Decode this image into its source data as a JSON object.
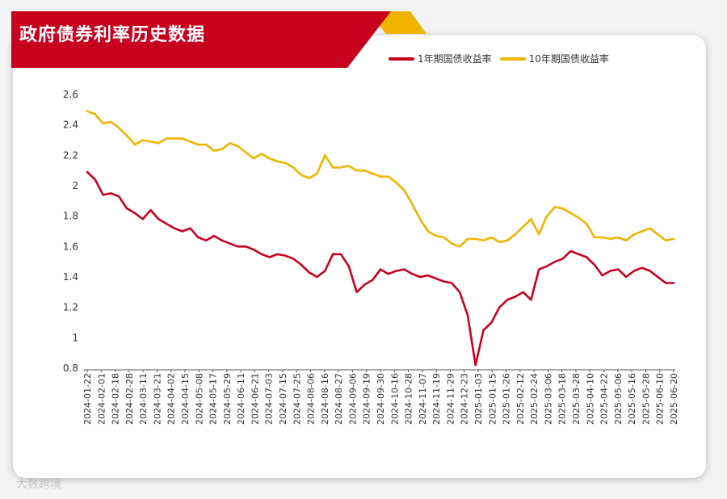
{
  "header": {
    "title": "政府债券利率历史数据"
  },
  "watermark": "大数跨境",
  "colors": {
    "one_year": "#c8001e",
    "ten_year": "#f0b400",
    "banner": "#c8001e",
    "banner_accent": "#f0b400"
  },
  "chart_data": {
    "type": "line",
    "title": "政府债券利率历史数据",
    "xlabel": "",
    "ylabel": "",
    "ylim": [
      0.8,
      2.6
    ],
    "y_ticks": [
      2.6,
      2.4,
      2.2,
      2,
      1.8,
      1.6,
      1.4,
      1.2,
      1,
      0.8
    ],
    "grid": false,
    "legend_position": "top-right",
    "x_tick_labels": [
      "2024-01-22",
      "2024-02-01",
      "2024-02-18",
      "2024-02-28",
      "2024-03-11",
      "2024-03-21",
      "2024-04-02",
      "2024-04-15",
      "2024-05-08",
      "2024-05-17",
      "2024-05-29",
      "2024-06-11",
      "2024-06-21",
      "2024-07-03",
      "2024-07-15",
      "2024-07-25",
      "2024-08-06",
      "2024-08-16",
      "2024-08-27",
      "2024-09-06",
      "2024-09-19",
      "2024-09-30",
      "2024-10-16",
      "2024-10-28",
      "2024-11-07",
      "2024-11-19",
      "2024-11-29",
      "2024-12-23",
      "2025-01-03",
      "2025-01-15",
      "2025-01-26",
      "2025-02-12",
      "2025-02-24",
      "2025-03-06",
      "2025-03-18",
      "2025-03-28",
      "2025-04-10",
      "2025-04-22",
      "2025-05-06",
      "2025-05-16",
      "2025-05-28",
      "2025-06-10",
      "2025-06-20"
    ],
    "series": [
      {
        "name": "1年期国债收益率",
        "color": "#c8001e",
        "values": [
          2.09,
          2.04,
          1.94,
          1.95,
          1.93,
          1.85,
          1.82,
          1.78,
          1.84,
          1.78,
          1.75,
          1.72,
          1.7,
          1.72,
          1.66,
          1.64,
          1.67,
          1.64,
          1.62,
          1.6,
          1.6,
          1.58,
          1.55,
          1.53,
          1.55,
          1.54,
          1.52,
          1.48,
          1.43,
          1.4,
          1.44,
          1.55,
          1.55,
          1.47,
          1.3,
          1.35,
          1.38,
          1.45,
          1.42,
          1.44,
          1.45,
          1.42,
          1.4,
          1.41,
          1.39,
          1.37,
          1.36,
          1.3,
          1.15,
          0.82,
          1.05,
          1.1,
          1.2,
          1.25,
          1.27,
          1.3,
          1.25,
          1.45,
          1.47,
          1.5,
          1.52,
          1.57,
          1.55,
          1.53,
          1.48,
          1.41,
          1.44,
          1.45,
          1.4,
          1.44,
          1.46,
          1.44,
          1.4,
          1.36,
          1.36
        ]
      },
      {
        "name": "10年期国债收益率",
        "color": "#f0b400",
        "values": [
          2.49,
          2.47,
          2.41,
          2.42,
          2.38,
          2.33,
          2.27,
          2.3,
          2.29,
          2.28,
          2.31,
          2.31,
          2.31,
          2.29,
          2.27,
          2.27,
          2.23,
          2.24,
          2.28,
          2.26,
          2.22,
          2.18,
          2.21,
          2.18,
          2.16,
          2.15,
          2.12,
          2.07,
          2.05,
          2.08,
          2.2,
          2.12,
          2.12,
          2.13,
          2.1,
          2.1,
          2.08,
          2.06,
          2.06,
          2.02,
          1.97,
          1.88,
          1.78,
          1.7,
          1.67,
          1.66,
          1.62,
          1.6,
          1.65,
          1.65,
          1.64,
          1.66,
          1.63,
          1.64,
          1.68,
          1.73,
          1.78,
          1.68,
          1.8,
          1.86,
          1.85,
          1.82,
          1.79,
          1.75,
          1.66,
          1.66,
          1.65,
          1.66,
          1.64,
          1.68,
          1.7,
          1.72,
          1.68,
          1.64,
          1.65
        ]
      }
    ]
  }
}
